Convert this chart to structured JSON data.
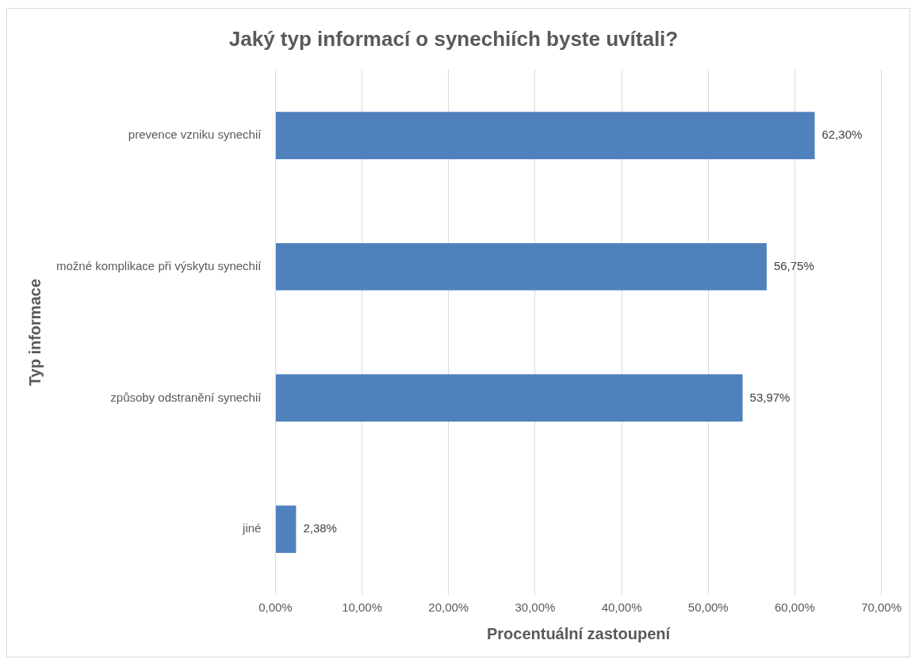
{
  "chart_data": {
    "type": "bar",
    "orientation": "horizontal",
    "title": "Jaký typ informací o synechiích byste uvítali?",
    "xlabel": "Procentuální zastoupení",
    "ylabel": "Typ informace",
    "categories": [
      "prevence vzniku synechií",
      "možné komplikace při výskytu synechií",
      "způsoby odstranění synechií",
      "jiné"
    ],
    "values": [
      62.3,
      56.75,
      53.97,
      2.38
    ],
    "color": "#4f81bd",
    "value_labels": [
      "62,30%",
      "56,75%",
      "53,97%",
      "2,38%"
    ],
    "xlim": [
      0,
      70
    ],
    "xticks": [
      {
        "value": 0,
        "label": "0,00%"
      },
      {
        "value": 10,
        "label": "10,00%"
      },
      {
        "value": 20,
        "label": "20,00%"
      },
      {
        "value": 30,
        "label": "30,00%"
      },
      {
        "value": 40,
        "label": "40,00%"
      },
      {
        "value": 50,
        "label": "50,00%"
      },
      {
        "value": 60,
        "label": "60,00%"
      },
      {
        "value": 70,
        "label": "70,00%"
      }
    ],
    "grid": "x",
    "legend": false
  }
}
